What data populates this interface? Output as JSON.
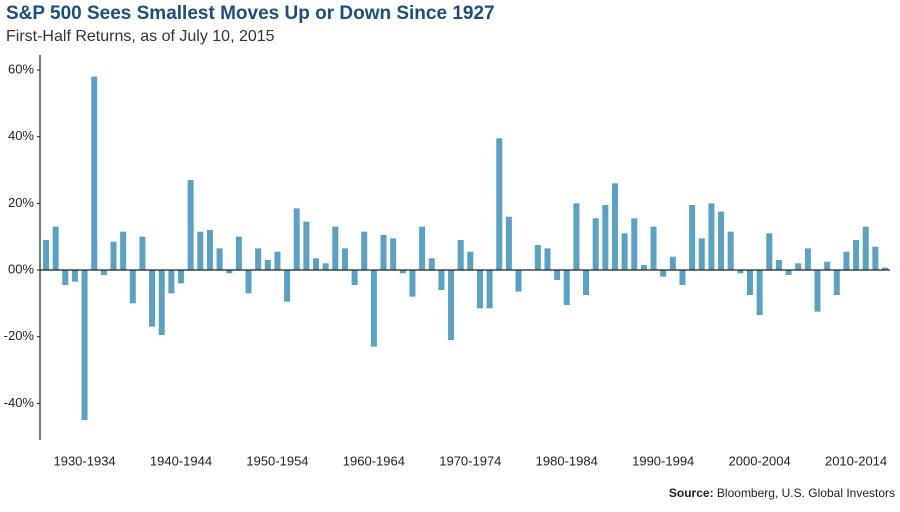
{
  "chart_data": {
    "type": "bar",
    "title": "S&P 500 Sees Smallest Moves Up or Down Since 1927",
    "subtitle": "First-Half Returns, as of July 10, 2015",
    "source_label": "Source:",
    "source": "Bloomberg, U.S. Global Investors",
    "color": "#5aa1c4",
    "categories": [
      null,
      null,
      null,
      null,
      "1930-1934",
      null,
      null,
      null,
      null,
      null,
      null,
      null,
      null,
      null,
      "1940-1944",
      null,
      null,
      null,
      null,
      null,
      null,
      null,
      null,
      null,
      "1950-1954",
      null,
      null,
      null,
      null,
      null,
      null,
      null,
      null,
      null,
      "1960-1964",
      null,
      null,
      null,
      null,
      null,
      null,
      null,
      null,
      null,
      "1970-1974",
      null,
      null,
      null,
      null,
      null,
      null,
      null,
      null,
      null,
      "1980-1984",
      null,
      null,
      null,
      null,
      null,
      null,
      null,
      null,
      null,
      "1990-1994",
      null,
      null,
      null,
      null,
      null,
      null,
      null,
      null,
      null,
      "2000-2004",
      null,
      null,
      null,
      null,
      null,
      null,
      null,
      null,
      null,
      "2010-2014",
      null,
      null,
      null
    ],
    "values": [
      9,
      13,
      -4.5,
      -3.5,
      -45,
      58,
      -1.5,
      8.5,
      11.5,
      -10,
      10,
      -17,
      -19.5,
      -7,
      -4,
      27,
      11.5,
      12,
      6.5,
      -1,
      10,
      -7,
      6.5,
      3,
      5.5,
      -9.5,
      18.5,
      14.5,
      3.5,
      2,
      13,
      6.5,
      -4.5,
      11.5,
      -23,
      10.5,
      9.5,
      -1,
      -8,
      13,
      3.5,
      -6,
      -21,
      9,
      5.5,
      -11.5,
      -11.5,
      39.5,
      16,
      -6.5,
      0.2,
      7.5,
      6.5,
      -3,
      -10.5,
      20,
      -7.5,
      15.5,
      19.5,
      26,
      11,
      15.5,
      1.5,
      13,
      -2,
      4,
      -4.5,
      19.5,
      9.5,
      20,
      17.5,
      11.5,
      -1,
      -7.5,
      -13.5,
      11,
      3,
      -1.5,
      2,
      6.5,
      -12.5,
      2.5,
      -7.5,
      5.5,
      9,
      13,
      7,
      0.7
    ],
    "ylim": [
      -51,
      64.5
    ],
    "yticks": [
      {
        "value": -40,
        "label": "-40%"
      },
      {
        "value": -20,
        "label": "-20%"
      },
      {
        "value": 0,
        "label": "00%"
      },
      {
        "value": 20,
        "label": "20%"
      },
      {
        "value": 40,
        "label": "40%"
      },
      {
        "value": 60,
        "label": "60%"
      }
    ],
    "grid": false
  }
}
